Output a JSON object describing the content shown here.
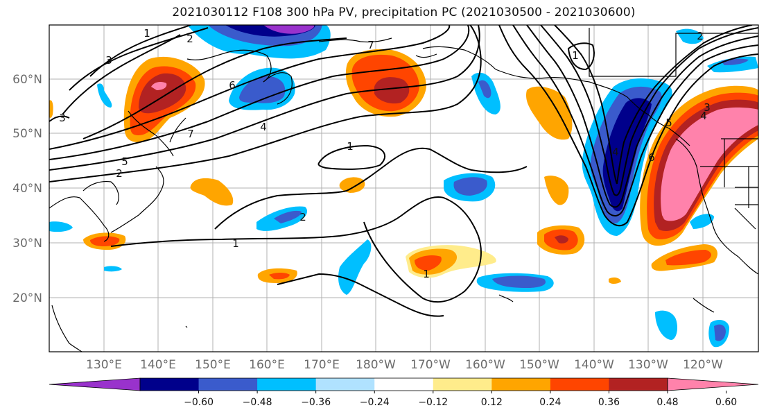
{
  "title": "2021030112 F108 300 hPa PV, precipitation PC (2021030500 - 2021030600)",
  "lat_labels": [
    "60°N",
    "50°N",
    "40°N",
    "30°N",
    "20°N"
  ],
  "lon_labels": [
    "130°E",
    "140°E",
    "150°E",
    "160°E",
    "170°E",
    "180°W",
    "170°W",
    "160°W",
    "150°W",
    "140°W",
    "130°W",
    "120°W"
  ],
  "colorbar": {
    "ticks": [
      "−0.60",
      "−0.48",
      "−0.36",
      "−0.24",
      "−0.12",
      "0.12",
      "0.24",
      "0.36",
      "0.48",
      "0.60"
    ],
    "colors": [
      "#9932cc",
      "#00008b",
      "#3a5bcc",
      "#00bfff",
      "#b0e2ff",
      "#ffffff",
      "#ffec8b",
      "#ffa500",
      "#ff4500",
      "#b22222",
      "#ff82ab"
    ]
  },
  "contour_labels": [
    "1",
    "2",
    "3",
    "4",
    "5",
    "6",
    "7",
    "1",
    "2",
    "1",
    "7",
    "1",
    "2",
    "3",
    "4",
    "4",
    "5",
    "6",
    "3",
    "2",
    "1"
  ]
}
